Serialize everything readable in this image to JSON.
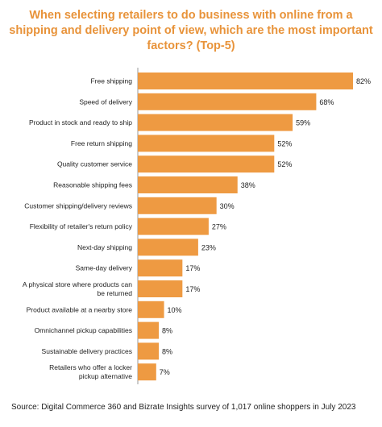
{
  "title": "When selecting retailers to do business with online from a shipping and delivery point of view, which are the most important factors? (Top-5)",
  "source": "Source:  Digital Commerce 360 and Bizrate Insights survey of 1,017 online shoppers in July 2023",
  "colors": {
    "bar": "#ee9a42",
    "title": "#e8933a",
    "axis": "#999999",
    "text": "#222222"
  },
  "chart_data": {
    "type": "bar",
    "orientation": "horizontal",
    "title": "When selecting retailers to do business with online from a shipping and delivery point of view, which are the most important factors? (Top-5)",
    "categories": [
      "Free shipping",
      "Speed of delivery",
      "Product in stock and ready to ship",
      "Free return shipping",
      "Quality customer service",
      "Reasonable shipping fees",
      "Customer shipping/delivery reviews",
      "Flexibility of retailer's return policy",
      "Next-day shipping",
      "Same-day delivery",
      "A physical store where products can be returned",
      "Product available at a nearby store",
      "Omnichannel pickup capabilities",
      "Sustainable delivery practices",
      "Retailers who offer a locker pickup alternative"
    ],
    "values": [
      82,
      68,
      59,
      52,
      52,
      38,
      30,
      27,
      23,
      17,
      17,
      10,
      8,
      8,
      7
    ],
    "value_labels": [
      "82%",
      "68%",
      "59%",
      "52%",
      "52%",
      "38%",
      "30%",
      "27%",
      "23%",
      "17%",
      "17%",
      "10%",
      "8%",
      "8%",
      "7%"
    ],
    "xlim": [
      0,
      82
    ],
    "grid": false,
    "legend": "none"
  }
}
